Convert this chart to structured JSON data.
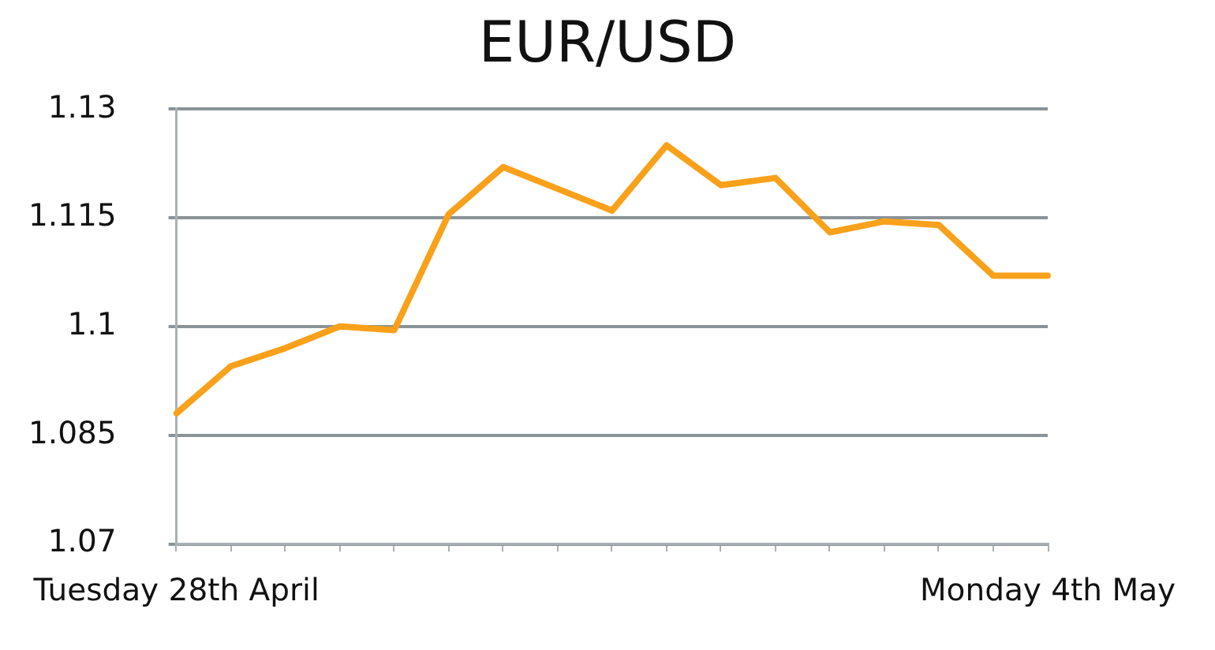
{
  "chart_data": {
    "type": "line",
    "title": "EUR/USD",
    "categories": [
      "Tuesday 28th April",
      null,
      null,
      null,
      null,
      null,
      null,
      null,
      null,
      null,
      null,
      null,
      null,
      null,
      null,
      null,
      "Monday 4th May"
    ],
    "series": [
      {
        "color": "#f9a11b",
        "values": [
          1.088,
          1.0945,
          1.097,
          1.1,
          1.0995,
          1.1155,
          1.122,
          1.119,
          1.116,
          1.125,
          1.1195,
          1.1205,
          1.113,
          1.1145,
          1.114,
          1.107,
          1.107
        ]
      }
    ],
    "ylim": [
      1.07,
      1.13
    ],
    "yticks": [
      1.07,
      1.085,
      1.1,
      1.115,
      1.13
    ],
    "grid": "y",
    "legend": false,
    "marker": "none"
  }
}
